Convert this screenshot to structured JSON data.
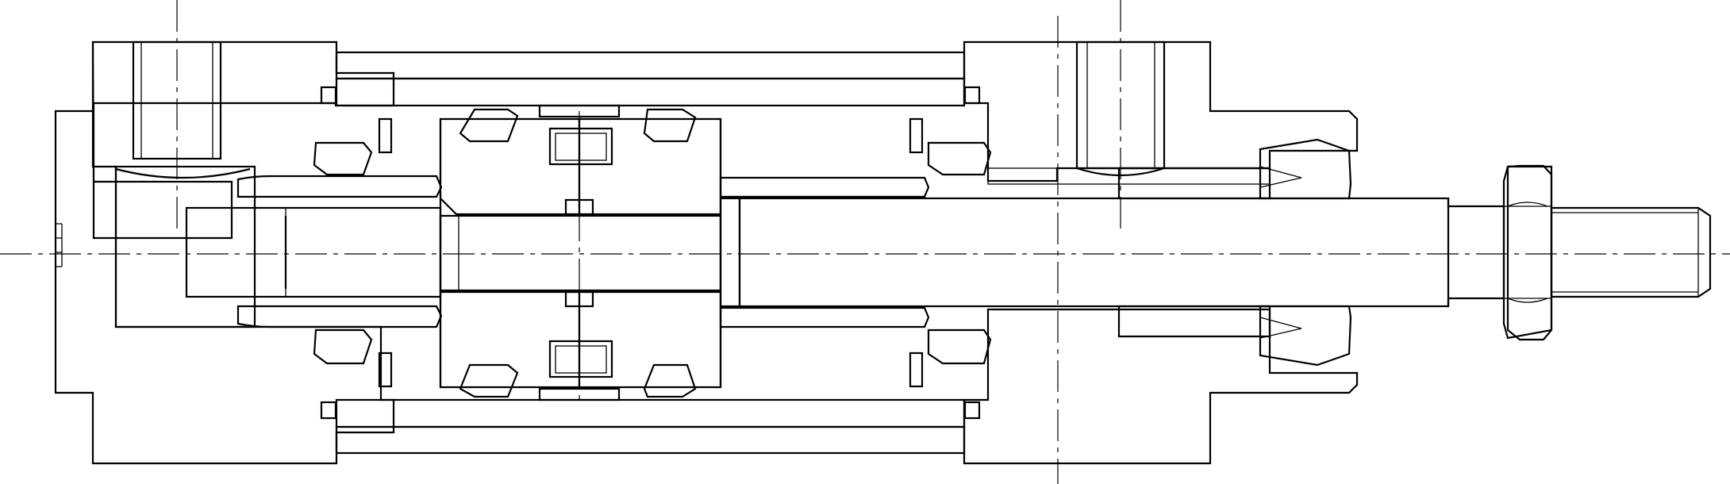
{
  "drawing": {
    "kind": "sectional engineering drawing",
    "colors": {
      "line": "#000000",
      "background": "#ffffff"
    },
    "parts": [
      "rear-end-cap",
      "front-end-cap",
      "cylinder-barrel",
      "barrel-outer-tube",
      "piston",
      "piston-rod",
      "rod-nut",
      "rear-cushion-sleeve",
      "front-cushion-sleeve",
      "piston-seal",
      "piston-wear-ring",
      "magnet-ring",
      "cushion-seal",
      "rod-seal",
      "rod-bushing",
      "barrel-o-ring",
      "tie-rod-port"
    ]
  }
}
